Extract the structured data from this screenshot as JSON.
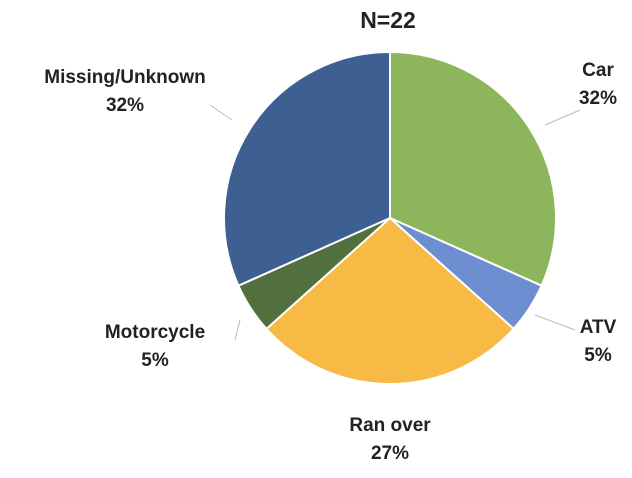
{
  "chart_data": {
    "type": "pie",
    "title": "N=22",
    "categories": [
      "Car",
      "ATV",
      "Ran over",
      "Motorcycle",
      "Missing/Unknown"
    ],
    "values": [
      32,
      5,
      27,
      5,
      32
    ],
    "value_labels": [
      "32%",
      "5%",
      "27%",
      "5%",
      "32%"
    ],
    "colors": [
      "#8db55c",
      "#6d8fd1",
      "#f7ba45",
      "#51703d",
      "#3d5f91"
    ]
  }
}
